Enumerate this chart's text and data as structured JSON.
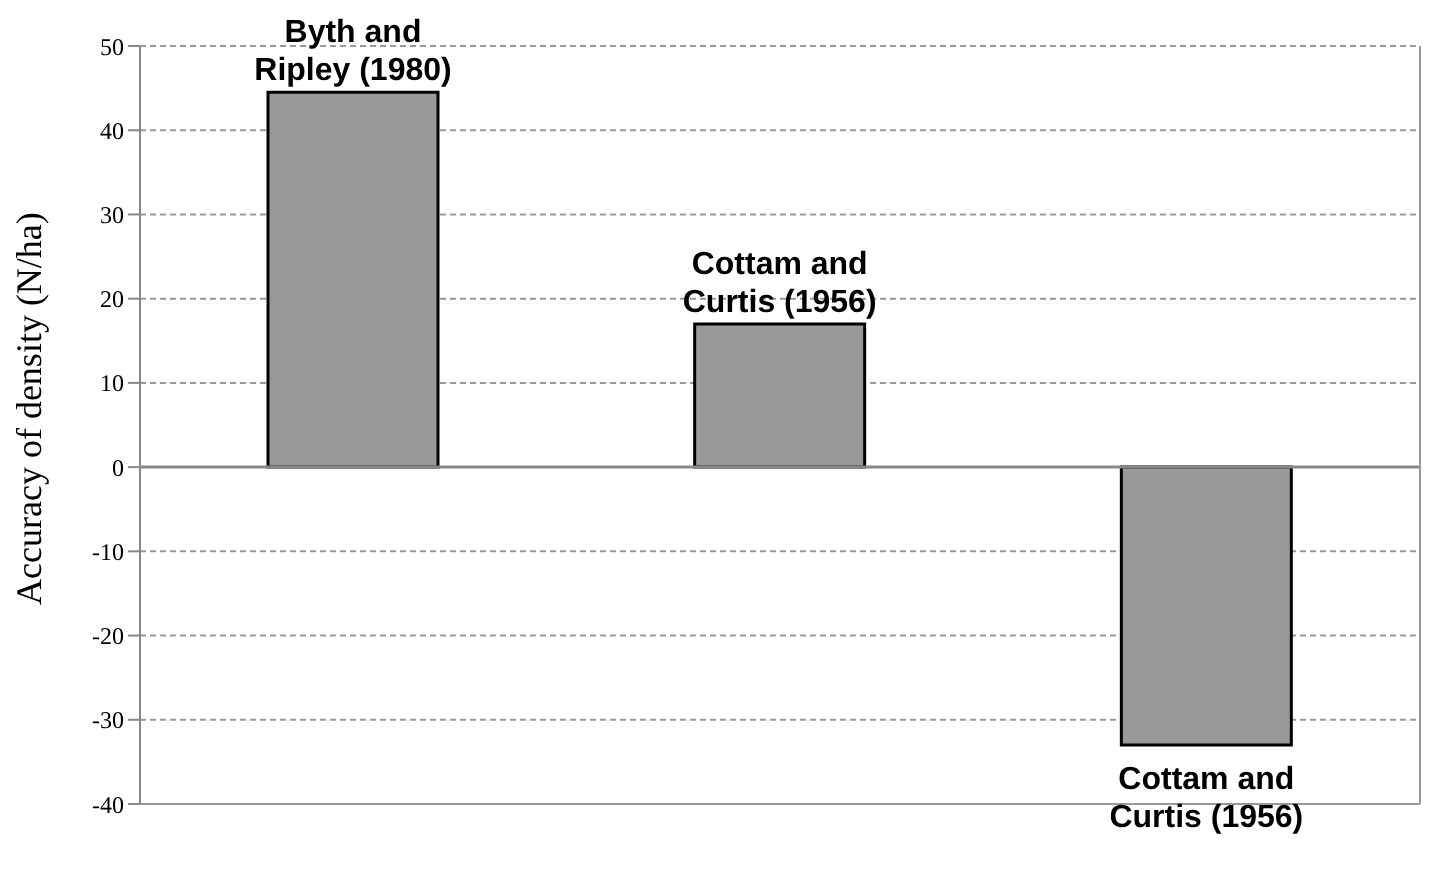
{
  "chart_data": {
    "type": "bar",
    "ylabel": "Accuracy of density (N/ha)",
    "categories": [
      "Byth and Ripley (1980)",
      "Cottam and Curtis (1956)",
      "Cottam and Curtis (1956)"
    ],
    "values": [
      44.5,
      17,
      -33
    ],
    "color": "#999999",
    "ylim": [
      -40,
      50
    ],
    "yticks": [
      -40,
      -30,
      -20,
      -10,
      0,
      10,
      20,
      30,
      40,
      50
    ],
    "grid": "y"
  }
}
